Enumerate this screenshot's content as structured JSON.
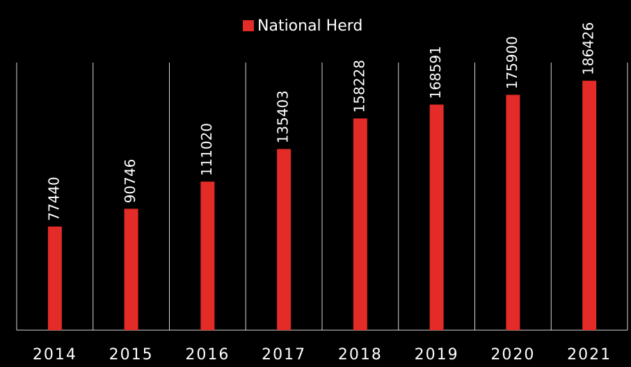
{
  "chart_data": {
    "type": "bar",
    "series": [
      {
        "name": "National Herd",
        "color": "#e32b27",
        "values": [
          77440,
          90746,
          111020,
          135403,
          158228,
          168591,
          175900,
          186426
        ]
      }
    ],
    "categories": [
      "2014",
      "2015",
      "2016",
      "2017",
      "2018",
      "2019",
      "2020",
      "2021"
    ],
    "ylim": [
      0,
      200000
    ],
    "legend": "top"
  }
}
